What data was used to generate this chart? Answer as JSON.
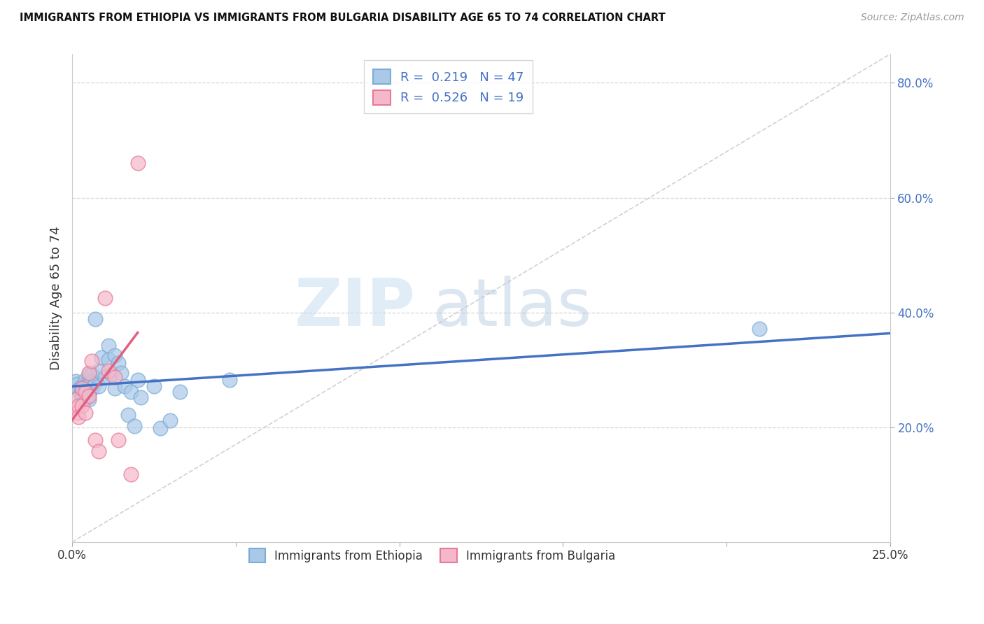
{
  "title": "IMMIGRANTS FROM ETHIOPIA VS IMMIGRANTS FROM BULGARIA DISABILITY AGE 65 TO 74 CORRELATION CHART",
  "source": "Source: ZipAtlas.com",
  "ylabel": "Disability Age 65 to 74",
  "xlim": [
    0.0,
    0.25
  ],
  "ylim": [
    0.0,
    0.85
  ],
  "ytick_vals": [
    0.2,
    0.4,
    0.6,
    0.8
  ],
  "ytick_labels": [
    "20.0%",
    "40.0%",
    "60.0%",
    "80.0%"
  ],
  "xtick_vals": [
    0.0,
    0.05,
    0.1,
    0.15,
    0.2,
    0.25
  ],
  "xtick_labels": [
    "0.0%",
    "",
    "",
    "",
    "",
    "25.0%"
  ],
  "ethiopia_color": "#aac8e8",
  "ethiopia_edge": "#7aaed4",
  "bulgaria_color": "#f5b8ca",
  "bulgaria_edge": "#e87898",
  "line_ethiopia": "#4472c4",
  "line_bulgaria": "#e06080",
  "R_ethiopia": 0.219,
  "N_ethiopia": 47,
  "R_bulgaria": 0.526,
  "N_bulgaria": 19,
  "legend_label_ethiopia": "Immigrants from Ethiopia",
  "legend_label_bulgaria": "Immigrants from Bulgaria",
  "watermark_zip": "ZIP",
  "watermark_atlas": "atlas",
  "background_color": "#ffffff",
  "grid_color": "#cccccc",
  "ethiopia_x": [
    0.001,
    0.0015,
    0.002,
    0.0025,
    0.003,
    0.003,
    0.003,
    0.0035,
    0.004,
    0.004,
    0.004,
    0.004,
    0.0045,
    0.005,
    0.005,
    0.005,
    0.005,
    0.005,
    0.0055,
    0.006,
    0.006,
    0.006,
    0.007,
    0.007,
    0.008,
    0.008,
    0.009,
    0.01,
    0.011,
    0.011,
    0.012,
    0.013,
    0.013,
    0.014,
    0.015,
    0.016,
    0.017,
    0.018,
    0.019,
    0.02,
    0.021,
    0.025,
    0.027,
    0.03,
    0.033,
    0.048,
    0.21
  ],
  "ethiopia_y": [
    0.28,
    0.275,
    0.265,
    0.258,
    0.272,
    0.26,
    0.25,
    0.268,
    0.282,
    0.272,
    0.26,
    0.25,
    0.27,
    0.292,
    0.278,
    0.268,
    0.258,
    0.248,
    0.275,
    0.292,
    0.28,
    0.268,
    0.278,
    0.388,
    0.298,
    0.272,
    0.322,
    0.288,
    0.342,
    0.318,
    0.292,
    0.325,
    0.268,
    0.312,
    0.295,
    0.272,
    0.222,
    0.262,
    0.202,
    0.282,
    0.252,
    0.272,
    0.198,
    0.212,
    0.262,
    0.282,
    0.372
  ],
  "bulgaria_x": [
    0.001,
    0.0015,
    0.002,
    0.002,
    0.003,
    0.003,
    0.004,
    0.004,
    0.005,
    0.005,
    0.006,
    0.007,
    0.008,
    0.01,
    0.011,
    0.013,
    0.014,
    0.018,
    0.02
  ],
  "bulgaria_y": [
    0.248,
    0.225,
    0.238,
    0.218,
    0.268,
    0.238,
    0.262,
    0.225,
    0.295,
    0.255,
    0.315,
    0.178,
    0.158,
    0.425,
    0.298,
    0.288,
    0.178,
    0.118,
    0.66
  ]
}
